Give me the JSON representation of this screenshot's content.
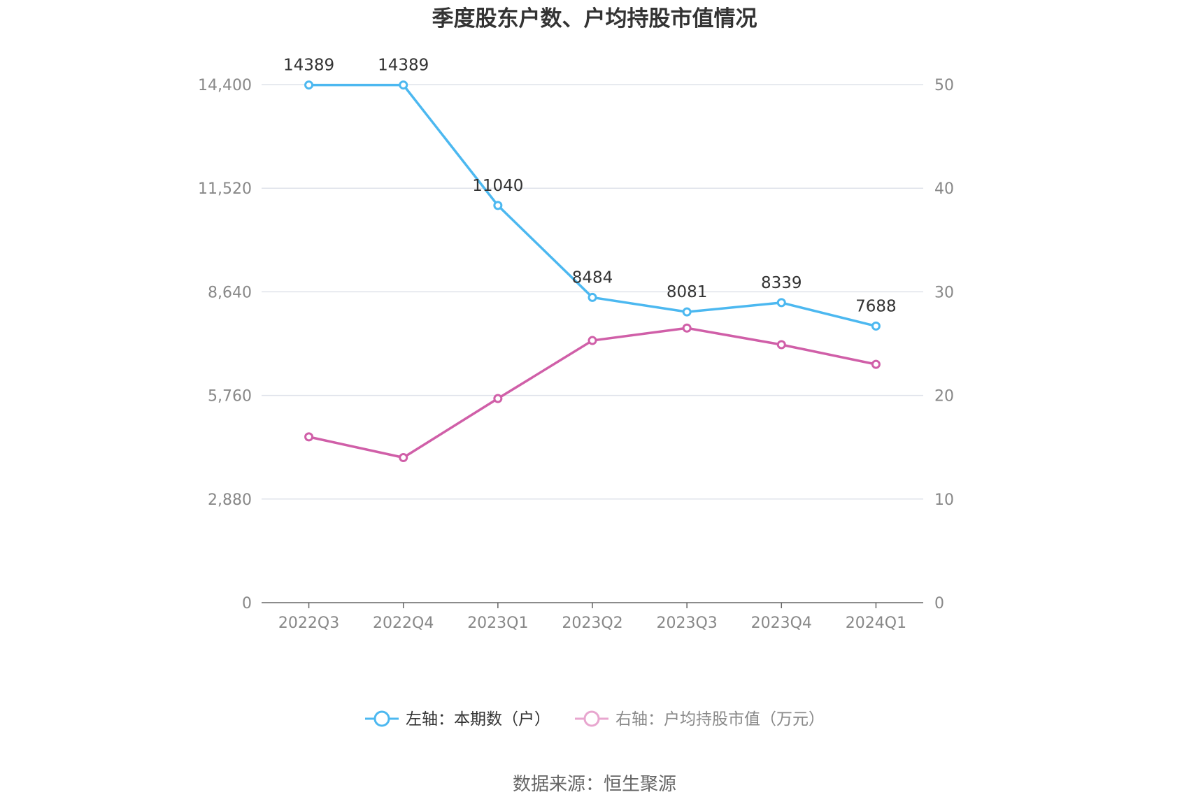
{
  "title": "季度股东户数、户均持股市值情况",
  "source": "数据来源：恒生聚源",
  "colors": {
    "left_series": "#4cb8f0",
    "right_series": "#d05fa8",
    "right_legend": "#e8a6cf",
    "grid": "#dfe3ea",
    "axis": "#666666"
  },
  "chart_data": {
    "type": "line",
    "categories": [
      "2022Q3",
      "2022Q4",
      "2023Q1",
      "2023Q2",
      "2023Q3",
      "2023Q4",
      "2024Q1"
    ],
    "y_left": {
      "ticks": [
        "0",
        "2,880",
        "5,760",
        "8,640",
        "11,520",
        "14,400"
      ],
      "ylim": [
        0,
        14400
      ]
    },
    "y_right": {
      "ticks": [
        "0",
        "10",
        "20",
        "30",
        "40",
        "50"
      ],
      "ylim": [
        0,
        50
      ]
    },
    "grid": true,
    "legend_position": "bottom",
    "series": [
      {
        "name": "左轴：本期数（户）",
        "axis": "left",
        "values": [
          14389,
          14389,
          11040,
          8484,
          8081,
          8339,
          7688
        ],
        "labels": [
          "14389",
          "14389",
          "11040",
          "8484",
          "8081",
          "8339",
          "7688"
        ]
      },
      {
        "name": "右轴：户均持股市值（万元）",
        "axis": "right",
        "values": [
          16.0,
          14.0,
          19.7,
          25.3,
          26.5,
          24.9,
          23.0
        ]
      }
    ]
  }
}
